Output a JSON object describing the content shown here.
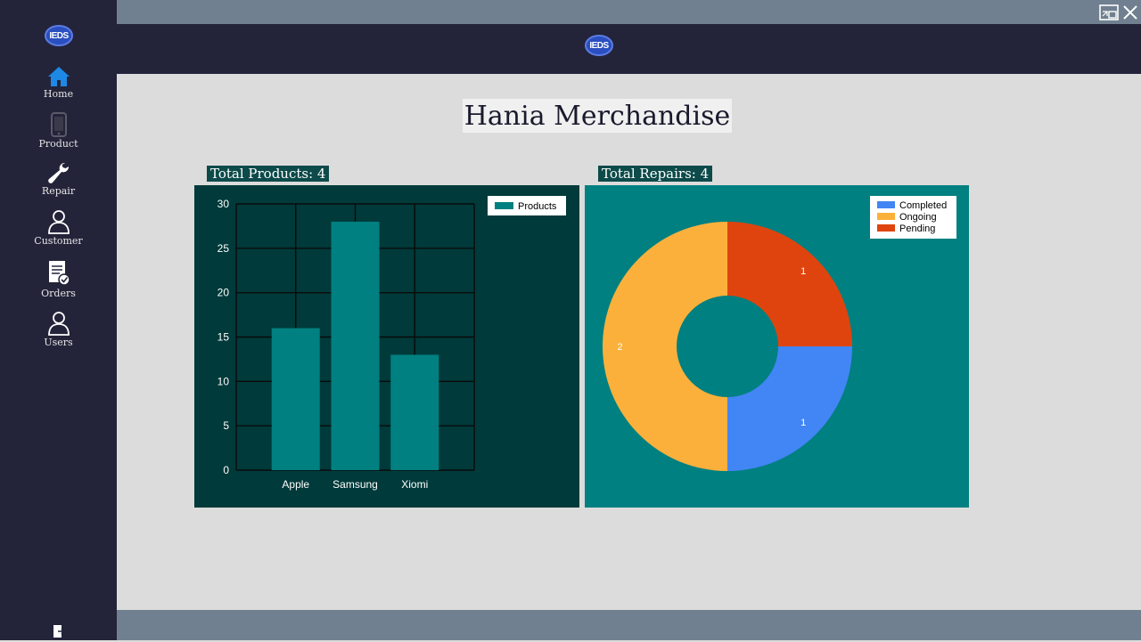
{
  "app": {
    "logo_text": "IEDS",
    "close_icon": "close-icon",
    "restore_icon": "restore-icon"
  },
  "sidebar": {
    "items": [
      {
        "label": "Home",
        "icon": "home-icon",
        "active": true
      },
      {
        "label": "Product",
        "icon": "phone-icon"
      },
      {
        "label": "Repair",
        "icon": "wrench-icon"
      },
      {
        "label": "Customer",
        "icon": "person-icon"
      },
      {
        "label": "Orders",
        "icon": "clipboard-check-icon"
      },
      {
        "label": "Users",
        "icon": "person-icon"
      }
    ],
    "logout_icon": "logout-icon"
  },
  "main": {
    "title": "Hania Merchandise",
    "total_products_label": "Total Products: 4",
    "total_repairs_label": "Total Repairs: 4"
  },
  "colors": {
    "sidebar_bg": "#23243a",
    "strip_bg": "#708090",
    "bar_panel_bg": "#003a3a",
    "donut_panel_bg": "#008080",
    "bar_fill": "#008080",
    "completed": "#4285f4",
    "ongoing": "#fbb03b",
    "pending": "#e0440e"
  },
  "chart_data": [
    {
      "type": "bar",
      "categories": [
        "Apple",
        "Samsung",
        "Xiomi"
      ],
      "series": [
        {
          "name": "Products",
          "values": [
            16,
            28,
            13
          ],
          "color": "#008080"
        }
      ],
      "yticks": [
        "0",
        "5",
        "10",
        "15",
        "20",
        "25",
        "30"
      ],
      "ylim": [
        0,
        30
      ],
      "grid": true,
      "legend": "top-right"
    },
    {
      "type": "pie",
      "donut": true,
      "labels": [
        "Completed",
        "Ongoing",
        "Pending"
      ],
      "values": [
        1,
        2,
        1
      ],
      "value_labels": [
        "1",
        "2",
        "1"
      ],
      "colors": [
        "#4285f4",
        "#fbb03b",
        "#e0440e"
      ],
      "legend": "top-right"
    }
  ]
}
